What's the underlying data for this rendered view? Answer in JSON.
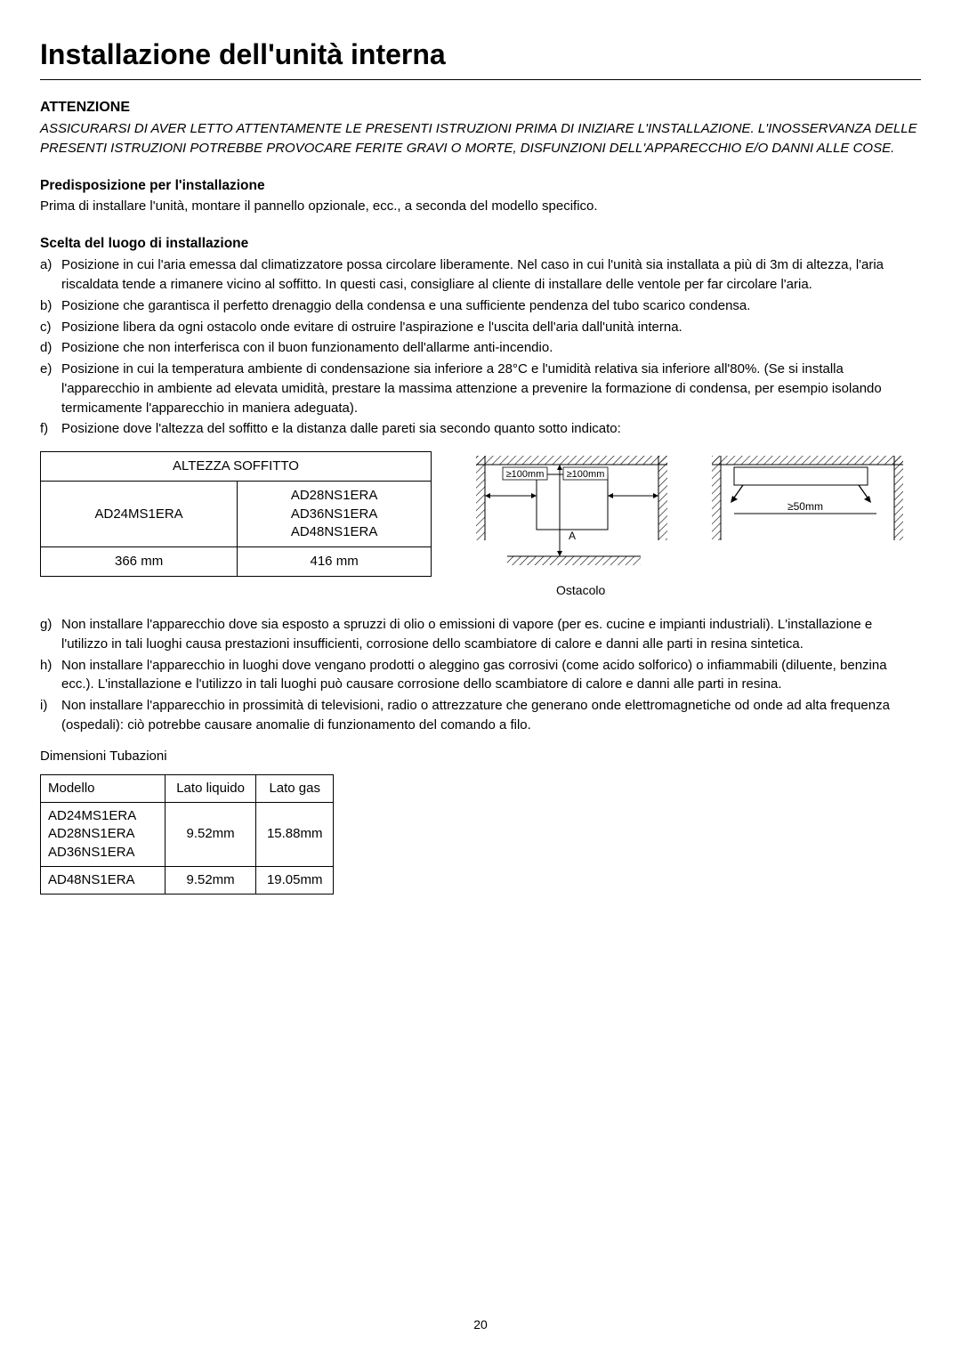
{
  "page_title": "Installazione dell'unità interna",
  "attention": {
    "label": "ATTENZIONE",
    "text": "ASSICURARSI DI AVER LETTO ATTENTAMENTE LE PRESENTI ISTRUZIONI PRIMA DI INIZIARE L'INSTALLAZIONE. L'INOSSERVANZA DELLE PRESENTI ISTRUZIONI POTREBBE PROVOCARE FERITE GRAVI O MORTE, DISFUNZIONI DELL'APPARECCHIO E/O DANNI ALLE COSE."
  },
  "preinstall": {
    "label": "Predisposizione per l'installazione",
    "text": "Prima di installare l'unità, montare il pannello opzionale, ecc., a seconda del modello specifico."
  },
  "site_selection": {
    "label": "Scelta del luogo di installazione",
    "items": [
      {
        "letter": "a)",
        "text": "Posizione in cui l'aria emessa dal climatizzatore possa circolare liberamente. Nel caso in cui l'unità sia installata a più di 3m di altezza, l'aria riscaldata tende a rimanere vicino al soffitto. In questi casi, consigliare al cliente di installare delle ventole per far circolare l'aria."
      },
      {
        "letter": "b)",
        "text": "Posizione che garantisca il perfetto drenaggio della condensa e una sufficiente pendenza del tubo scarico condensa."
      },
      {
        "letter": "c)",
        "text": "Posizione libera da ogni ostacolo onde evitare di ostruire l'aspirazione e l'uscita dell'aria dall'unità interna."
      },
      {
        "letter": "d)",
        "text": "Posizione che non interferisca con il buon funzionamento dell'allarme anti-incendio."
      },
      {
        "letter": "e)",
        "text": "Posizione in cui la temperatura ambiente di condensazione sia inferiore a 28°C e l'umidità relativa sia inferiore all'80%. (Se si installa l'apparecchio in ambiente ad elevata umidità, prestare la massima attenzione a prevenire la formazione di condensa, per esempio isolando termicamente l'apparecchio in maniera adeguata)."
      },
      {
        "letter": "f)",
        "text": "Posizione dove l'altezza del soffitto e la distanza dalle pareti sia secondo quanto sotto indicato:"
      }
    ],
    "items2": [
      {
        "letter": "g)",
        "text": "Non installare l'apparecchio dove sia esposto a spruzzi di olio o emissioni di vapore (per es. cucine e impianti industriali). L'installazione e l'utilizzo in tali luoghi causa prestazioni insufficienti, corrosione dello scambiatore di calore e danni alle parti in resina sintetica."
      },
      {
        "letter": "h)",
        "text": "Non installare l'apparecchio in luoghi dove vengano prodotti o aleggino gas corrosivi (come acido solforico) o infiammabili (diluente, benzina ecc.). L'installazione e l'utilizzo in tali luoghi può causare corrosione dello scambiatore di calore e danni alle parti in resina."
      },
      {
        "letter": "i)",
        "text": "Non installare l'apparecchio in prossimità di televisioni, radio o attrezzature che generano onde elettromagnetiche od onde ad alta frequenza (ospedali): ciò potrebbe causare anomalie di funzionamento del comando a filo."
      }
    ]
  },
  "ceiling_table": {
    "header": "ALTEZZA SOFFITTO",
    "col1_models": "AD24MS1ERA",
    "col2_models_line1": "AD28NS1ERA",
    "col2_models_line2": "AD36NS1ERA",
    "col2_models_line3": "AD48NS1ERA",
    "col1_value": "366 mm",
    "col2_value": "416 mm"
  },
  "diagram": {
    "label_100mm_left": "≥100mm",
    "label_100mm_right": "≥100mm",
    "label_50mm": "≥50mm",
    "label_A": "A",
    "obstacle_label": "Ostacolo",
    "hatch_color": "#000000",
    "line_color": "#000000",
    "font_size": 12
  },
  "pipe_dimensions": {
    "label": "Dimensioni Tubazioni",
    "headers": [
      "Modello",
      "Lato liquido",
      "Lato gas"
    ],
    "rows": [
      {
        "models": [
          "AD24MS1ERA",
          "AD28NS1ERA",
          "AD36NS1ERA"
        ],
        "liquid": "9.52mm",
        "gas": "15.88mm"
      },
      {
        "models": [
          "AD48NS1ERA"
        ],
        "liquid": "9.52mm",
        "gas": "19.05mm"
      }
    ]
  },
  "page_number": "20"
}
